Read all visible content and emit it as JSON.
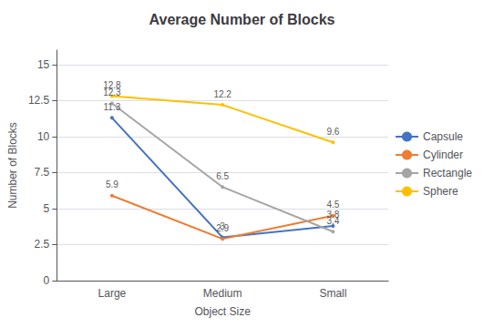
{
  "chart_data": {
    "type": "line",
    "title": "Average Number of Blocks",
    "x_label": "Object Size",
    "y_label": "Number of Blocks",
    "categories": [
      "Large",
      "Medium",
      "Small"
    ],
    "series": [
      {
        "name": "Capsule",
        "color": "#4472C4",
        "values": [
          11.3,
          3.0,
          3.8
        ]
      },
      {
        "name": "Cylinder",
        "color": "#ED7D31",
        "values": [
          5.9,
          2.9,
          4.5
        ]
      },
      {
        "name": "Rectangle",
        "color": "#A5A5A5",
        "values": [
          12.3,
          6.5,
          3.4
        ]
      },
      {
        "name": "Sphere",
        "color": "#FFC000",
        "values": [
          12.8,
          12.2,
          9.6
        ]
      }
    ],
    "ylim": [
      0,
      16
    ],
    "yticks": [
      0,
      2.5,
      5,
      7.5,
      10,
      12.5,
      15
    ],
    "grid": true,
    "legend": "right",
    "data_labels": true
  }
}
